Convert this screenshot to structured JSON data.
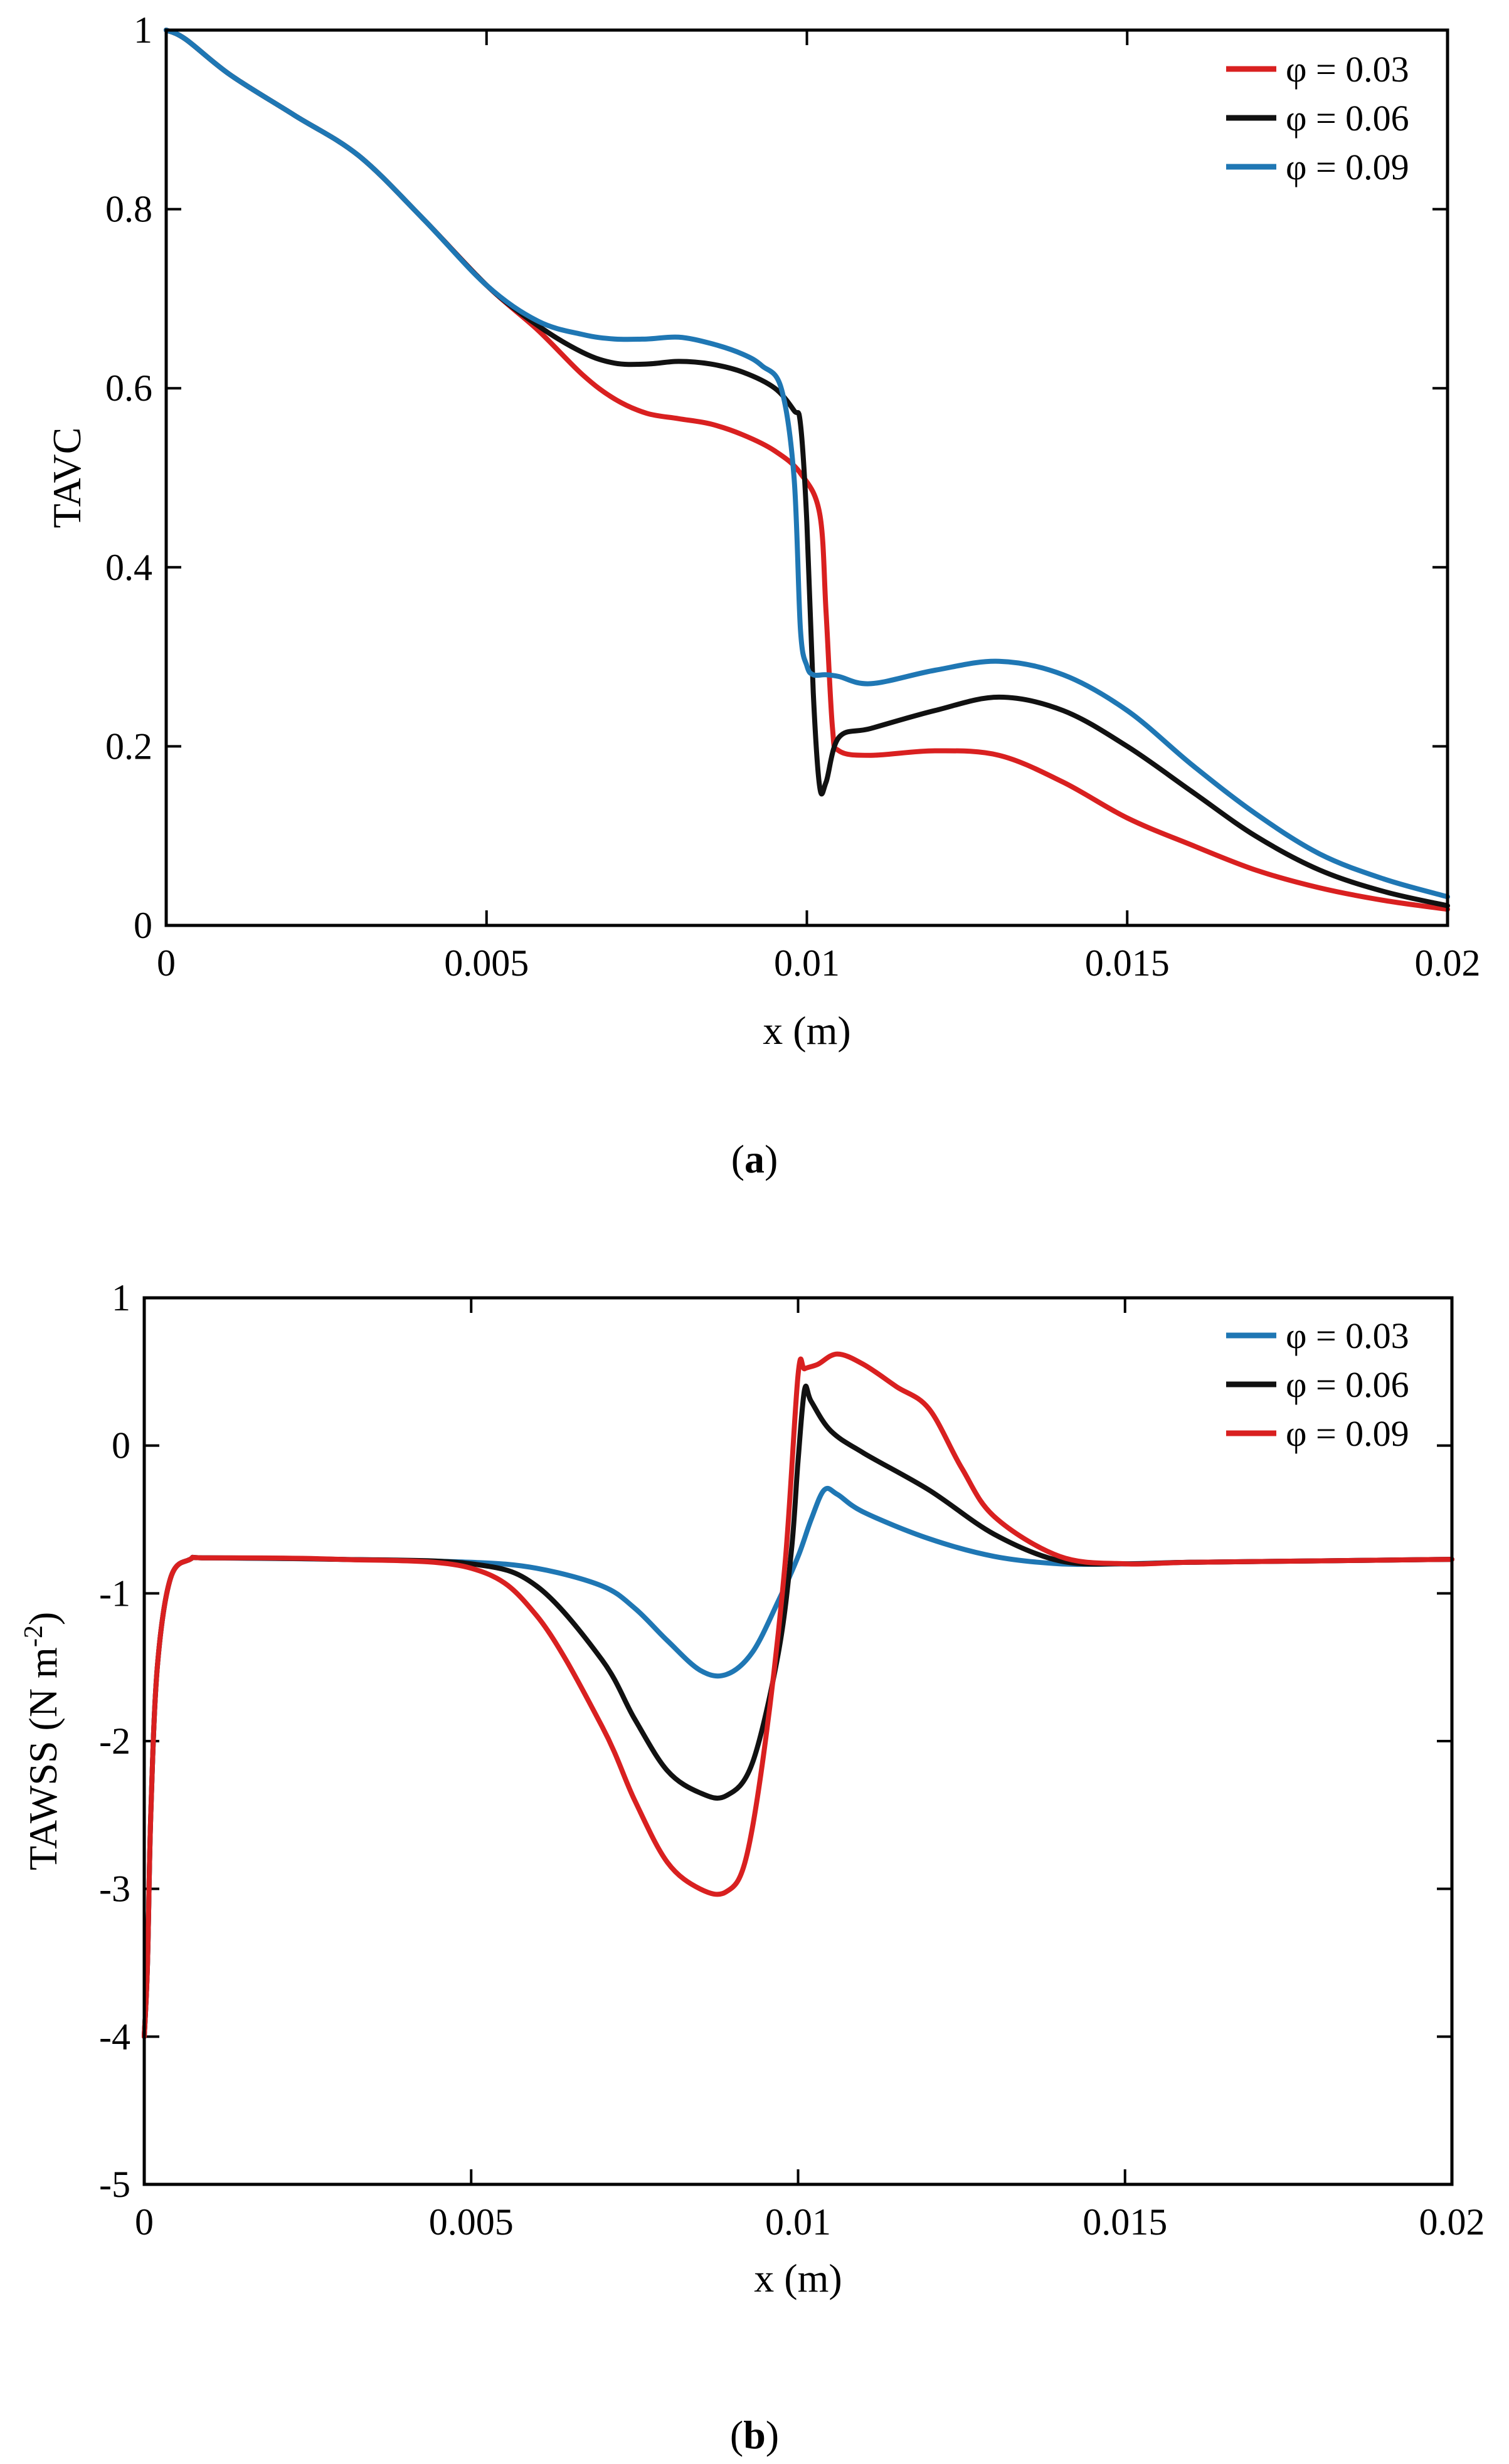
{
  "chart_data": [
    {
      "type": "line",
      "panel": "a",
      "caption": {
        "open": "(",
        "letter": "a",
        "close": ")"
      },
      "xlabel": "x (m)",
      "ylabel": "TAVC",
      "xlim": [
        0,
        0.02
      ],
      "ylim": [
        0,
        1
      ],
      "xticks": [
        0,
        0.005,
        0.01,
        0.015,
        0.02
      ],
      "xtick_labels": [
        "0",
        "0.005",
        "0.01",
        "0.015",
        "0.02"
      ],
      "yticks": [
        0,
        0.2,
        0.4,
        0.6,
        0.8,
        1
      ],
      "ytick_labels": [
        "0",
        "0.2",
        "0.4",
        "0.6",
        "0.8",
        "1"
      ],
      "legend_position": "top-right",
      "series": [
        {
          "name": "φ = 0.03",
          "color": "#d92020",
          "x": [
            0,
            0.0003,
            0.001,
            0.002,
            0.003,
            0.004,
            0.005,
            0.0058,
            0.0065,
            0.007,
            0.0075,
            0.008,
            0.0085,
            0.009,
            0.0095,
            0.0099,
            0.0102,
            0.0103,
            0.0104,
            0.0105,
            0.011,
            0.012,
            0.013,
            0.014,
            0.015,
            0.016,
            0.017,
            0.018,
            0.019,
            0.02
          ],
          "y": [
            1.0,
            0.99,
            0.95,
            0.905,
            0.86,
            0.79,
            0.715,
            0.665,
            0.615,
            0.588,
            0.572,
            0.566,
            0.56,
            0.548,
            0.53,
            0.505,
            0.46,
            0.35,
            0.22,
            0.195,
            0.19,
            0.195,
            0.19,
            0.16,
            0.12,
            0.09,
            0.062,
            0.042,
            0.028,
            0.018
          ]
        },
        {
          "name": "φ = 0.06",
          "color": "#111111",
          "x": [
            0,
            0.0003,
            0.001,
            0.002,
            0.003,
            0.004,
            0.005,
            0.0058,
            0.0065,
            0.007,
            0.0075,
            0.008,
            0.0085,
            0.009,
            0.0095,
            0.0098,
            0.0099,
            0.01,
            0.0101,
            0.0102,
            0.0103,
            0.0105,
            0.011,
            0.012,
            0.013,
            0.014,
            0.015,
            0.016,
            0.017,
            0.018,
            0.019,
            0.02
          ],
          "y": [
            1.0,
            0.99,
            0.95,
            0.905,
            0.86,
            0.79,
            0.715,
            0.67,
            0.64,
            0.628,
            0.627,
            0.63,
            0.627,
            0.618,
            0.6,
            0.575,
            0.56,
            0.45,
            0.26,
            0.155,
            0.16,
            0.21,
            0.22,
            0.24,
            0.255,
            0.24,
            0.2,
            0.15,
            0.1,
            0.062,
            0.038,
            0.022
          ]
        },
        {
          "name": "φ = 0.09",
          "color": "#1f77b4",
          "x": [
            0,
            0.0003,
            0.001,
            0.002,
            0.003,
            0.004,
            0.005,
            0.0058,
            0.0065,
            0.007,
            0.0075,
            0.008,
            0.0085,
            0.009,
            0.0093,
            0.0096,
            0.0098,
            0.0099,
            0.01,
            0.0101,
            0.0103,
            0.0105,
            0.011,
            0.012,
            0.013,
            0.014,
            0.015,
            0.016,
            0.017,
            0.018,
            0.019,
            0.02
          ],
          "y": [
            1.0,
            0.99,
            0.95,
            0.905,
            0.86,
            0.79,
            0.715,
            0.675,
            0.66,
            0.655,
            0.655,
            0.657,
            0.65,
            0.638,
            0.625,
            0.6,
            0.5,
            0.33,
            0.29,
            0.28,
            0.28,
            0.278,
            0.27,
            0.285,
            0.295,
            0.28,
            0.24,
            0.18,
            0.125,
            0.08,
            0.052,
            0.032
          ]
        }
      ]
    },
    {
      "type": "line",
      "panel": "b",
      "caption": {
        "open": "(",
        "letter": "b",
        "close": ")"
      },
      "xlabel": "x (m)",
      "ylabel": {
        "base": "TAWSS (N m",
        "exponent": "-2",
        "close": ")"
      },
      "xlim": [
        0,
        0.02
      ],
      "ylim": [
        -5,
        1
      ],
      "xticks": [
        0,
        0.005,
        0.01,
        0.015,
        0.02
      ],
      "xtick_labels": [
        "0",
        "0.005",
        "0.01",
        "0.015",
        "0.02"
      ],
      "yticks": [
        -5,
        -4,
        -3,
        -2,
        -1,
        0,
        1
      ],
      "ytick_labels": [
        "-5",
        "-4",
        "-3",
        "-2",
        "-1",
        "0",
        "1"
      ],
      "legend_position": "top-right",
      "series": [
        {
          "name": "φ = 0.03",
          "color": "#1f77b4",
          "x": [
            0,
            5e-05,
            0.0001,
            0.0002,
            0.0004,
            0.0007,
            0.001,
            0.003,
            0.005,
            0.006,
            0.007,
            0.0075,
            0.008,
            0.0085,
            0.0089,
            0.0093,
            0.0097,
            0.01,
            0.0102,
            0.0104,
            0.0106,
            0.011,
            0.012,
            0.013,
            0.014,
            0.015,
            0.016,
            0.018,
            0.02
          ],
          "y": [
            -4.0,
            -3.5,
            -2.5,
            -1.5,
            -0.9,
            -0.77,
            -0.76,
            -0.77,
            -0.79,
            -0.83,
            -0.95,
            -1.1,
            -1.32,
            -1.52,
            -1.55,
            -1.4,
            -1.05,
            -0.75,
            -0.5,
            -0.3,
            -0.33,
            -0.45,
            -0.63,
            -0.75,
            -0.8,
            -0.8,
            -0.79,
            -0.78,
            -0.77
          ]
        },
        {
          "name": "φ = 0.06",
          "color": "#111111",
          "x": [
            0,
            5e-05,
            0.0001,
            0.0002,
            0.0004,
            0.0007,
            0.001,
            0.003,
            0.005,
            0.006,
            0.007,
            0.0075,
            0.008,
            0.0085,
            0.0089,
            0.0093,
            0.0097,
            0.0099,
            0.01,
            0.0101,
            0.0102,
            0.0105,
            0.011,
            0.012,
            0.013,
            0.014,
            0.015,
            0.016,
            0.018,
            0.02
          ],
          "y": [
            -4.0,
            -3.5,
            -2.5,
            -1.5,
            -0.9,
            -0.77,
            -0.76,
            -0.77,
            -0.8,
            -0.95,
            -1.45,
            -1.85,
            -2.2,
            -2.35,
            -2.37,
            -2.15,
            -1.4,
            -0.7,
            -0.1,
            0.38,
            0.3,
            0.1,
            -0.05,
            -0.3,
            -0.6,
            -0.78,
            -0.8,
            -0.79,
            -0.78,
            -0.77
          ]
        },
        {
          "name": "φ = 0.09",
          "color": "#d92020",
          "x": [
            0,
            5e-05,
            0.0001,
            0.0002,
            0.0004,
            0.0007,
            0.001,
            0.003,
            0.005,
            0.006,
            0.007,
            0.0075,
            0.008,
            0.0085,
            0.0089,
            0.0092,
            0.0095,
            0.0098,
            0.01,
            0.0101,
            0.0103,
            0.0106,
            0.011,
            0.0115,
            0.012,
            0.0125,
            0.013,
            0.014,
            0.015,
            0.016,
            0.018,
            0.02
          ],
          "y": [
            -4.0,
            -3.5,
            -2.5,
            -1.5,
            -0.9,
            -0.77,
            -0.76,
            -0.77,
            -0.83,
            -1.15,
            -1.9,
            -2.4,
            -2.82,
            -3.0,
            -3.02,
            -2.8,
            -2.0,
            -0.8,
            0.48,
            0.52,
            0.55,
            0.62,
            0.55,
            0.4,
            0.25,
            -0.15,
            -0.48,
            -0.75,
            -0.8,
            -0.79,
            -0.78,
            -0.77
          ]
        }
      ]
    }
  ]
}
